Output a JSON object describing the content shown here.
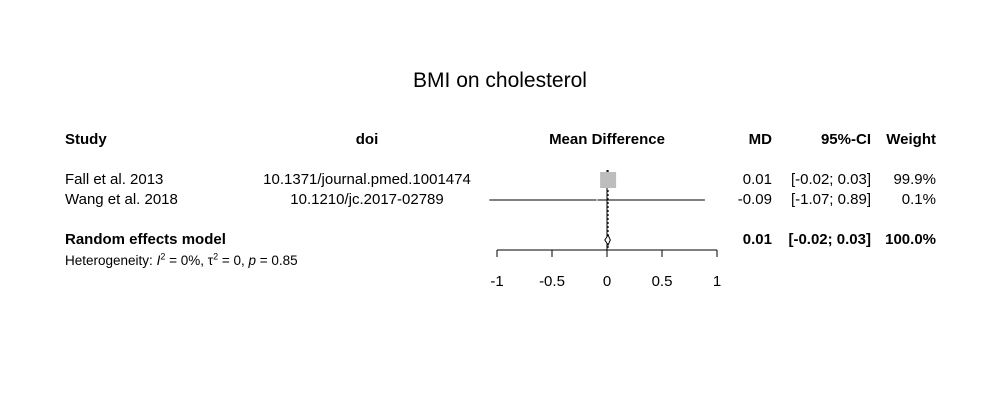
{
  "chart_data": {
    "type": "forest",
    "title": "BMI on cholesterol",
    "columns": {
      "study": "Study",
      "doi": "doi",
      "effect": "Mean Difference",
      "md": "MD",
      "ci": "95%-CI",
      "weight": "Weight"
    },
    "studies": [
      {
        "study": "Fall et al. 2013",
        "doi": "10.1371/journal.pmed.1001474",
        "md": 0.01,
        "lower": -0.02,
        "upper": 0.03,
        "md_text": "0.01",
        "ci_text": "[-0.02; 0.03]",
        "weight": 99.9,
        "weight_text": "99.9%"
      },
      {
        "study": "Wang et al. 2018",
        "doi": "10.1210/jc.2017-02789",
        "md": -0.09,
        "lower": -1.07,
        "upper": 0.89,
        "md_text": "-0.09",
        "ci_text": "[-1.07; 0.89]",
        "weight": 0.1,
        "weight_text": "0.1%"
      }
    ],
    "pooled": {
      "label": "Random effects model",
      "md": 0.01,
      "lower": -0.02,
      "upper": 0.03,
      "md_text": "0.01",
      "ci_text": "[-0.02; 0.03]",
      "weight_text": "100.0%"
    },
    "heterogeneity": {
      "prefix": "Heterogeneity: ",
      "i2_symbol": "I",
      "i2_value": " = 0%, ",
      "tau2_symbol": "τ",
      "tau2_value": " = 0, ",
      "p_symbol": "p",
      "p_value": " = 0.85"
    },
    "x_axis": {
      "range": [
        -1,
        1
      ],
      "ticks": [
        -1,
        -0.5,
        0,
        0.5,
        1
      ],
      "tick_labels": [
        "-1",
        "-0.5",
        "0",
        "0.5",
        "1"
      ]
    },
    "colors": {
      "square": "#bdbdbd",
      "line": "#000000"
    }
  }
}
